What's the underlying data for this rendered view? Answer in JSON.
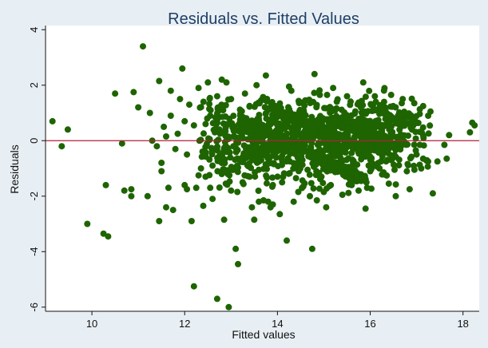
{
  "chart_data": {
    "type": "scatter",
    "title": "Residuals vs. Fitted Values",
    "xlabel": "Fitted values",
    "ylabel": "Residuals",
    "xlim": [
      9.0,
      18.35
    ],
    "ylim": [
      -6.15,
      4.15
    ],
    "xticks": [
      10,
      12,
      14,
      16,
      18
    ],
    "yticks": [
      -6,
      -4,
      -2,
      0,
      2,
      4
    ],
    "ytick_labels": [
      "-6",
      "-4",
      "-2",
      "0",
      "2",
      "4"
    ],
    "reference_line": {
      "y": 0,
      "color": "#b0203a"
    },
    "grid": false,
    "point_color": "#1e6400",
    "background_color": "#e8eff4",
    "plot_color": "#ffffff",
    "title_color": "#1f3f66",
    "points": [
      [
        9.15,
        0.7
      ],
      [
        9.35,
        -0.2
      ],
      [
        9.48,
        0.4
      ],
      [
        9.9,
        -3.0
      ],
      [
        10.25,
        -3.35
      ],
      [
        10.3,
        -1.6
      ],
      [
        10.35,
        -3.45
      ],
      [
        10.5,
        1.7
      ],
      [
        10.65,
        -0.1
      ],
      [
        10.7,
        -1.8
      ],
      [
        10.85,
        -1.75
      ],
      [
        10.85,
        -2.0
      ],
      [
        10.9,
        1.75
      ],
      [
        11.0,
        1.2
      ],
      [
        11.1,
        3.4
      ],
      [
        11.2,
        -2.0
      ],
      [
        11.25,
        1.0
      ],
      [
        11.3,
        0.0
      ],
      [
        11.4,
        -0.2
      ],
      [
        11.45,
        2.15
      ],
      [
        11.45,
        -2.9
      ],
      [
        11.5,
        -0.8
      ],
      [
        11.5,
        -1.1
      ],
      [
        11.55,
        0.5
      ],
      [
        11.6,
        -2.4
      ],
      [
        11.65,
        -1.7
      ],
      [
        11.7,
        1.8
      ],
      [
        11.7,
        0.9
      ],
      [
        11.75,
        -2.5
      ],
      [
        11.8,
        -0.3
      ],
      [
        11.85,
        0.25
      ],
      [
        11.9,
        1.5
      ],
      [
        11.95,
        2.6
      ],
      [
        12.0,
        0.7
      ],
      [
        12.0,
        -1.6
      ],
      [
        12.05,
        -0.5
      ],
      [
        12.05,
        -1.75
      ],
      [
        12.1,
        1.3
      ],
      [
        12.15,
        -2.9
      ],
      [
        12.2,
        -5.25
      ],
      [
        12.2,
        0.55
      ],
      [
        12.25,
        -1.7
      ],
      [
        12.3,
        1.9
      ],
      [
        12.35,
        -1.0
      ],
      [
        12.4,
        -2.35
      ],
      [
        12.45,
        -1.3
      ],
      [
        12.5,
        2.1
      ],
      [
        12.55,
        0.9
      ],
      [
        12.55,
        -1.7
      ],
      [
        12.6,
        -0.9
      ],
      [
        12.65,
        0.3
      ],
      [
        12.7,
        -5.7
      ],
      [
        12.7,
        1.6
      ],
      [
        12.75,
        0.4
      ],
      [
        12.8,
        2.2
      ],
      [
        12.8,
        -1.2
      ],
      [
        12.85,
        -2.85
      ],
      [
        12.9,
        2.1
      ],
      [
        12.95,
        0.6
      ],
      [
        12.95,
        -6.0
      ],
      [
        13.0,
        1.5
      ],
      [
        13.05,
        -0.2
      ],
      [
        13.1,
        -3.9
      ],
      [
        13.15,
        -4.45
      ],
      [
        13.2,
        0.9
      ],
      [
        13.25,
        -1.5
      ],
      [
        13.3,
        1.7
      ],
      [
        13.35,
        -0.6
      ],
      [
        13.4,
        -1.3
      ],
      [
        13.45,
        -2.4
      ],
      [
        13.5,
        -2.85
      ],
      [
        13.55,
        2.0
      ],
      [
        13.6,
        -2.2
      ],
      [
        13.65,
        -0.7
      ],
      [
        13.7,
        -2.15
      ],
      [
        13.75,
        2.35
      ],
      [
        13.8,
        -2.2
      ],
      [
        13.85,
        -2.4
      ],
      [
        13.9,
        -2.3
      ],
      [
        13.95,
        1.1
      ],
      [
        14.05,
        -2.65
      ],
      [
        14.1,
        -1.5
      ],
      [
        14.2,
        -3.6
      ],
      [
        14.25,
        1.95
      ],
      [
        14.35,
        -2.2
      ],
      [
        14.45,
        -1.85
      ],
      [
        14.55,
        1.0
      ],
      [
        14.65,
        -1.05
      ],
      [
        14.75,
        -3.9
      ],
      [
        14.8,
        2.4
      ],
      [
        14.85,
        -2.15
      ],
      [
        14.95,
        -1.3
      ],
      [
        15.05,
        -2.4
      ],
      [
        15.15,
        -1.6
      ],
      [
        15.3,
        -0.8
      ],
      [
        15.45,
        -1.2
      ],
      [
        15.6,
        -1.6
      ],
      [
        15.75,
        -1.8
      ],
      [
        15.85,
        2.1
      ],
      [
        15.9,
        -2.45
      ],
      [
        16.0,
        -1.1
      ],
      [
        16.1,
        1.6
      ],
      [
        16.2,
        -1.0
      ],
      [
        16.3,
        1.4
      ],
      [
        16.45,
        -0.7
      ],
      [
        16.55,
        -2.0
      ],
      [
        16.7,
        1.5
      ],
      [
        16.85,
        -1.75
      ],
      [
        16.95,
        1.35
      ],
      [
        17.1,
        -1.0
      ],
      [
        17.15,
        0.1
      ],
      [
        17.25,
        0.9
      ],
      [
        17.3,
        1.05
      ],
      [
        17.35,
        -1.9
      ],
      [
        17.45,
        -0.75
      ],
      [
        17.6,
        -0.15
      ],
      [
        17.65,
        -0.65
      ],
      [
        17.7,
        0.2
      ],
      [
        18.15,
        0.3
      ],
      [
        18.2,
        0.65
      ],
      [
        18.25,
        0.55
      ],
      [
        14.0,
        0.85
      ],
      [
        14.3,
        1.8
      ],
      [
        14.6,
        1.45
      ],
      [
        15.2,
        1.9
      ],
      [
        15.5,
        1.6
      ],
      [
        15.8,
        1.2
      ],
      [
        16.25,
        1.25
      ],
      [
        16.6,
        0.9
      ],
      [
        16.9,
        0.4
      ],
      [
        13.6,
        -1.05
      ],
      [
        13.9,
        -1.6
      ],
      [
        14.4,
        -1.35
      ],
      [
        14.7,
        -2.0
      ],
      [
        15.0,
        -1.85
      ],
      [
        15.4,
        -1.95
      ],
      [
        12.3,
        -1.25
      ],
      [
        12.6,
        -2.1
      ],
      [
        13.0,
        -1.8
      ],
      [
        12.45,
        0.6
      ],
      [
        12.75,
        1.1
      ],
      [
        13.4,
        1.25
      ],
      [
        16.4,
        -1.55
      ],
      [
        17.0,
        -0.5
      ],
      [
        11.6,
        0.15
      ]
    ],
    "cloud_clusters": [
      {
        "center": [
          14.5,
          0.0
        ],
        "spread": [
          1.25,
          0.75
        ],
        "count": 560,
        "seed": 11
      },
      {
        "center": [
          15.5,
          0.35
        ],
        "spread": [
          0.9,
          0.7
        ],
        "count": 260,
        "seed": 23
      },
      {
        "center": [
          13.2,
          0.1
        ],
        "spread": [
          0.6,
          0.75
        ],
        "count": 170,
        "seed": 37
      },
      {
        "center": [
          16.6,
          0.0
        ],
        "spread": [
          0.55,
          0.7
        ],
        "count": 110,
        "seed": 51
      }
    ],
    "diagonal_band": {
      "x_start": 13.2,
      "x_end": 15.95,
      "slope": -0.82,
      "intercept_at_14": 0.1,
      "jitter": 0.12,
      "count": 230,
      "seed": 71
    },
    "diagonal_band_upper": {
      "x_start": 13.6,
      "x_end": 16.0,
      "slope": -0.82,
      "intercept_at_14": 1.15,
      "jitter": 0.12,
      "count": 120,
      "seed": 89
    }
  }
}
